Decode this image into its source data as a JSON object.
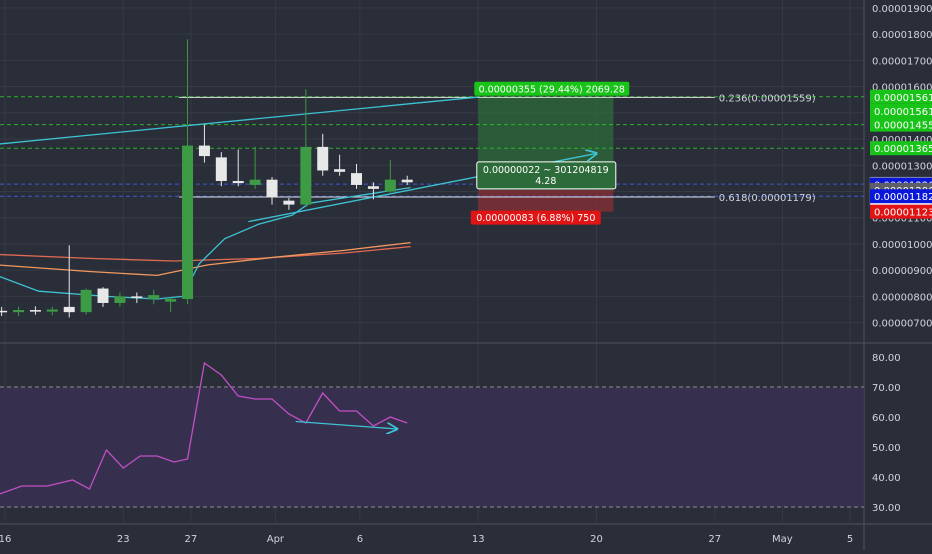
{
  "colors": {
    "background": "#2a2e39",
    "grid": "#363a45",
    "axis_line": "#4c525e",
    "axis_text": "#d1d4dc",
    "up_candle": "#3d9a45",
    "down_candle": "#e8e8e8",
    "ma_red": "#e26a52",
    "ma_orange": "#f3985e",
    "trend_cyan": "#3cc3d4",
    "fib_line": "#e0e0e0",
    "green_level": "#29b329",
    "blue_level": "#3c5ad6",
    "profit_zone": "#2e6b3a",
    "loss_zone": "#8a2f33",
    "badge_green": "#18c418",
    "badge_red": "#e01414",
    "badge_blue": "#0a17d8",
    "badge_gray": "#5d606b",
    "rsi_line": "#c04fc4",
    "rsi_band": "#3a2f52",
    "rsi_bound": "#8d8d8d"
  },
  "chart_data": [
    {
      "type": "candlestick",
      "title": "",
      "ylim": [
        6.3e-06,
        1.93e-05
      ],
      "y_ticks": [
        {
          "value": 7e-06,
          "label": "0.00000700"
        },
        {
          "value": 8e-06,
          "label": "0.00000800"
        },
        {
          "value": 9e-06,
          "label": "0.00000900"
        },
        {
          "value": 1e-05,
          "label": "0.00001000"
        },
        {
          "value": 1.1e-05,
          "label": "0.00001100"
        },
        {
          "value": 1.2e-05,
          "label": "0.00001200"
        },
        {
          "value": 1.3e-05,
          "label": "0.00001300"
        },
        {
          "value": 1.4e-05,
          "label": "0.00001400"
        },
        {
          "value": 1.5e-05,
          "label": "0.00001500"
        },
        {
          "value": 1.6e-05,
          "label": "0.00001600"
        },
        {
          "value": 1.7e-05,
          "label": "0.00001700"
        },
        {
          "value": 1.8e-05,
          "label": "0.00001800"
        },
        {
          "value": 1.9e-05,
          "label": "0.00001900"
        }
      ],
      "x_ticks": [
        {
          "day": 0,
          "label": "16"
        },
        {
          "day": 7,
          "label": "23"
        },
        {
          "day": 11,
          "label": "27"
        },
        {
          "day": 16,
          "label": "Apr"
        },
        {
          "day": 21,
          "label": "6"
        },
        {
          "day": 28,
          "label": "13"
        },
        {
          "day": 35,
          "label": "20"
        },
        {
          "day": 42,
          "label": "27"
        },
        {
          "day": 46,
          "label": "May"
        },
        {
          "day": 50,
          "label": "5"
        }
      ],
      "candles": [
        {
          "day": -0.2,
          "o": 7.45e-06,
          "h": 7.6e-06,
          "l": 7.25e-06,
          "c": 7.4e-06
        },
        {
          "day": 0.8,
          "o": 7.4e-06,
          "h": 7.6e-06,
          "l": 7.25e-06,
          "c": 7.48e-06
        },
        {
          "day": 1.8,
          "o": 7.48e-06,
          "h": 7.62e-06,
          "l": 7.3e-06,
          "c": 7.42e-06
        },
        {
          "day": 2.8,
          "o": 7.42e-06,
          "h": 7.6e-06,
          "l": 7.28e-06,
          "c": 7.5e-06
        },
        {
          "day": 3.8,
          "o": 7.6e-06,
          "h": 9.95e-06,
          "l": 7.2e-06,
          "c": 7.4e-06
        },
        {
          "day": 4.8,
          "o": 7.4e-06,
          "h": 8.3e-06,
          "l": 7.3e-06,
          "c": 8.25e-06
        },
        {
          "day": 5.8,
          "o": 8.3e-06,
          "h": 8.35e-06,
          "l": 7.6e-06,
          "c": 7.75e-06
        },
        {
          "day": 6.8,
          "o": 7.75e-06,
          "h": 8.15e-06,
          "l": 7.6e-06,
          "c": 8e-06
        },
        {
          "day": 7.8,
          "o": 8e-06,
          "h": 8.15e-06,
          "l": 7.75e-06,
          "c": 7.95e-06
        },
        {
          "day": 8.8,
          "o": 7.9e-06,
          "h": 8.25e-06,
          "l": 7.7e-06,
          "c": 8.05e-06
        },
        {
          "day": 9.8,
          "o": 7.8e-06,
          "h": 7.95e-06,
          "l": 7.4e-06,
          "c": 7.9e-06
        },
        {
          "day": 10.8,
          "o": 7.9e-06,
          "h": 1.78e-05,
          "l": 7.7e-06,
          "c": 1.375e-05
        },
        {
          "day": 11.8,
          "o": 1.375e-05,
          "h": 1.455e-05,
          "l": 1.31e-05,
          "c": 1.335e-05
        },
        {
          "day": 12.8,
          "o": 1.33e-05,
          "h": 1.35e-05,
          "l": 1.22e-05,
          "c": 1.24e-05
        },
        {
          "day": 13.8,
          "o": 1.24e-05,
          "h": 1.36e-05,
          "l": 1.22e-05,
          "c": 1.232e-05
        },
        {
          "day": 14.8,
          "o": 1.225e-05,
          "h": 1.37e-05,
          "l": 1.21e-05,
          "c": 1.245e-05
        },
        {
          "day": 15.8,
          "o": 1.245e-05,
          "h": 1.255e-05,
          "l": 1.15e-05,
          "c": 1.18e-05
        },
        {
          "day": 16.8,
          "o": 1.165e-05,
          "h": 1.175e-05,
          "l": 1.13e-05,
          "c": 1.15e-05
        },
        {
          "day": 17.8,
          "o": 1.15e-05,
          "h": 1.59e-05,
          "l": 1.14e-05,
          "c": 1.37e-05
        },
        {
          "day": 18.8,
          "o": 1.37e-05,
          "h": 1.42e-05,
          "l": 1.26e-05,
          "c": 1.28e-05
        },
        {
          "day": 19.8,
          "o": 1.285e-05,
          "h": 1.34e-05,
          "l": 1.26e-05,
          "c": 1.275e-05
        },
        {
          "day": 20.8,
          "o": 1.27e-05,
          "h": 1.305e-05,
          "l": 1.21e-05,
          "c": 1.225e-05
        },
        {
          "day": 21.8,
          "o": 1.22e-05,
          "h": 1.235e-05,
          "l": 1.17e-05,
          "c": 1.21e-05
        },
        {
          "day": 22.8,
          "o": 1.2e-05,
          "h": 1.32e-05,
          "l": 1.19e-05,
          "c": 1.245e-05
        },
        {
          "day": 23.8,
          "o": 1.245e-05,
          "h": 1.26e-05,
          "l": 1.225e-05,
          "c": 1.235e-05
        }
      ],
      "moving_averages": [
        {
          "color_key": "ma_red",
          "points": [
            [
              -0.5,
              9.6e-06
            ],
            [
              5,
              9.45e-06
            ],
            [
              10,
              9.35e-06
            ],
            [
              15,
              9.45e-06
            ],
            [
              20,
              9.65e-06
            ],
            [
              24,
              9.9e-06
            ]
          ]
        },
        {
          "color_key": "ma_orange",
          "points": [
            [
              -0.5,
              9.2e-06
            ],
            [
              5,
              8.95e-06
            ],
            [
              9,
              8.8e-06
            ],
            [
              12,
              9.2e-06
            ],
            [
              16,
              9.5e-06
            ],
            [
              20,
              9.75e-06
            ],
            [
              24,
              1.005e-05
            ]
          ]
        },
        {
          "color_key": "trend_cyan",
          "points": [
            [
              -0.5,
              8.8e-06
            ],
            [
              2,
              8.2e-06
            ],
            [
              6,
              8e-06
            ],
            [
              9,
              7.9e-06
            ],
            [
              10.5,
              8e-06
            ],
            [
              11.5,
              9.25e-06
            ],
            [
              13,
              1.02e-05
            ],
            [
              15,
              1.075e-05
            ],
            [
              17,
              1.11e-05
            ],
            [
              18,
              1.155e-05
            ],
            [
              20,
              1.175e-05
            ],
            [
              22,
              1.195e-05
            ],
            [
              24,
              1.215e-05
            ]
          ]
        }
      ],
      "trend_lines": [
        {
          "from": [
            -0.5,
            1.38e-05
          ],
          "to": [
            28,
            1.56e-05
          ]
        },
        {
          "from": [
            14.4,
            1.085e-05
          ],
          "to": [
            35,
            1.345e-05
          ],
          "arrow": true
        }
      ],
      "fib_levels": [
        {
          "value": 1.559e-05,
          "label": "0.236(0.00001559)",
          "from_day": 10.3,
          "to_day": 42
        },
        {
          "value": 1.179e-05,
          "label": "0.618(0.00001179)",
          "from_day": 10.3,
          "to_day": 42
        }
      ],
      "dashed_levels": [
        {
          "value": 1.561e-05,
          "color_key": "green_level"
        },
        {
          "value": 1.455e-05,
          "color_key": "green_level"
        },
        {
          "value": 1.365e-05,
          "color_key": "green_level"
        },
        {
          "value": 1.228e-05,
          "color_key": "blue_level"
        },
        {
          "value": 1.182e-05,
          "color_key": "blue_level"
        }
      ],
      "position": {
        "from_day": 28,
        "to_day": 36,
        "target": 1.561e-05,
        "entry": 1.206e-05,
        "stop": 1.123e-05,
        "target_label": "0.00000355 (29.44%) 2069.28",
        "entry_label_1": "0.00000022 ~ 301204819",
        "entry_label_2": "4.28",
        "stop_label": "0.00000083 (6.88%) 750"
      },
      "price_badges": [
        {
          "value": 1.561e-05,
          "label": "0.00001561",
          "style": "green"
        },
        {
          "value": 1.561e-05,
          "label": "0.00001561",
          "style": "green",
          "offset": 1
        },
        {
          "value": 1.455e-05,
          "label": "0.00001455",
          "style": "green"
        },
        {
          "value": 1.365e-05,
          "label": "0.00001365",
          "style": "green"
        },
        {
          "value": 1.228e-05,
          "label": "0.00001228",
          "style": "white"
        },
        {
          "value": 1.228e-05,
          "label": "22:22:26",
          "style": "white",
          "offset": 1
        },
        {
          "value": 1.226e-05,
          "label": "0.00001226",
          "style": "blue"
        },
        {
          "value": 1.206e-05,
          "label": "0.00001206",
          "style": "gray"
        },
        {
          "value": 1.182e-05,
          "label": "0.00001182",
          "style": "blue"
        },
        {
          "value": 1.123e-05,
          "label": "0.00001123",
          "style": "red"
        }
      ]
    },
    {
      "type": "line",
      "title": "",
      "ylim": [
        25,
        84
      ],
      "y_ticks": [
        {
          "value": 30,
          "label": "30.00"
        },
        {
          "value": 40,
          "label": "40.00"
        },
        {
          "value": 50,
          "label": "50.00"
        },
        {
          "value": 60,
          "label": "60.00"
        },
        {
          "value": 70,
          "label": "70.00"
        },
        {
          "value": 80,
          "label": "80.00"
        }
      ],
      "band": [
        30,
        70
      ],
      "series": [
        {
          "x": [
            -0.5,
            1,
            2.5,
            4,
            5,
            6,
            7,
            8,
            9,
            10,
            10.8,
            11.8,
            12.8,
            13.8,
            14.8,
            15.8,
            16.8,
            17.8,
            18.8,
            19.8,
            20.8,
            21.8,
            22.8,
            23.8
          ],
          "y": [
            34,
            37,
            37,
            39,
            36,
            49,
            43,
            47,
            47,
            45,
            46,
            78,
            74,
            67,
            66,
            66,
            61,
            58,
            68,
            62,
            62,
            57,
            60,
            58
          ]
        }
      ],
      "divergence_line": {
        "from": [
          17.2,
          58.5
        ],
        "to": [
          23.2,
          56
        ],
        "arrow": true
      }
    }
  ]
}
